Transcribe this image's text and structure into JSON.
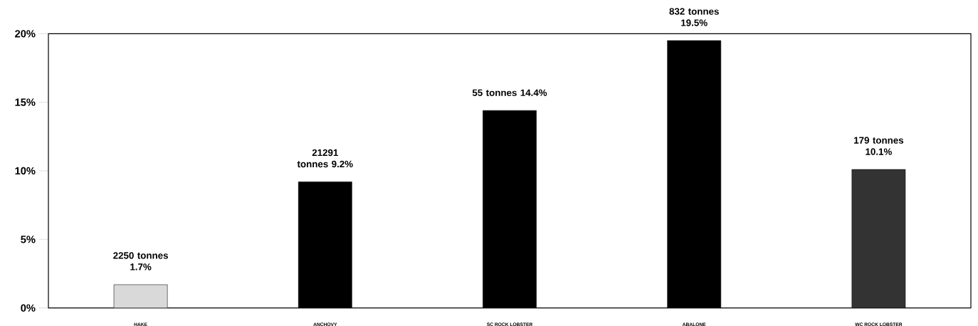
{
  "chart_data": {
    "type": "bar",
    "categories": [
      "HAKE",
      "ANCHOVY",
      "SC ROCK LOBSTER",
      "ABALONE",
      "WC ROCK LOBSTER"
    ],
    "values": [
      1.7,
      9.2,
      14.4,
      19.5,
      10.1
    ],
    "colors": [
      "#d9d9d9",
      "#000000",
      "#000000",
      "#000000",
      "#333333"
    ],
    "value_labels": [
      "2250 tonnes 1.7%",
      "21291 tonnes 9.2%",
      "55 tonnes 14.4%",
      "832 tonnes 19.5%",
      "179 tonnes 10.1%"
    ],
    "ylim": [
      0,
      20
    ],
    "yticks": [
      {
        "value": 0,
        "label": "0%"
      },
      {
        "value": 5,
        "label": "5%"
      },
      {
        "value": 10,
        "label": "10%"
      },
      {
        "value": 15,
        "label": "15%"
      },
      {
        "value": 20,
        "label": "20%"
      }
    ],
    "grid": false
  }
}
